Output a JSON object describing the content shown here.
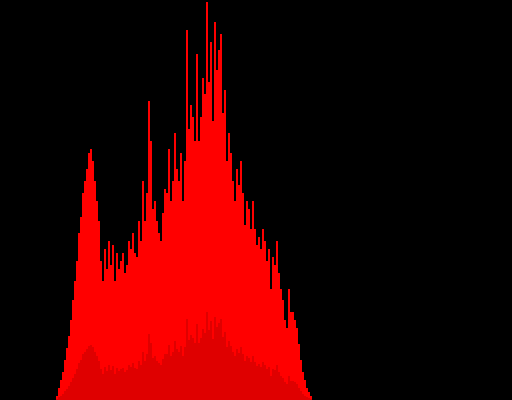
{
  "chart_data": {
    "type": "bar",
    "title": "",
    "xlabel": "",
    "ylabel": "",
    "grid": false,
    "legend": "none",
    "x_count": 256,
    "ylim": [
      0,
      1
    ],
    "colors": {
      "background": "#000000",
      "bar": "#ff0000",
      "bar_dark": "#8b0000"
    },
    "values": [
      0,
      0,
      0,
      0,
      0,
      0,
      0,
      0,
      0,
      0,
      0,
      0,
      0,
      0,
      0,
      0,
      0,
      0,
      0,
      0,
      0,
      0,
      0,
      0,
      0,
      0,
      0,
      0,
      0.01,
      0.03,
      0.05,
      0.07,
      0.1,
      0.13,
      0.16,
      0.2,
      0.25,
      0.3,
      0.35,
      0.42,
      0.46,
      0.52,
      0.55,
      0.58,
      0.62,
      0.63,
      0.6,
      0.55,
      0.5,
      0.45,
      0.35,
      0.3,
      0.38,
      0.33,
      0.4,
      0.34,
      0.39,
      0.3,
      0.37,
      0.33,
      0.35,
      0.37,
      0.32,
      0.34,
      0.4,
      0.38,
      0.42,
      0.37,
      0.36,
      0.45,
      0.4,
      0.55,
      0.45,
      0.52,
      0.75,
      0.65,
      0.48,
      0.5,
      0.45,
      0.42,
      0.4,
      0.47,
      0.53,
      0.52,
      0.63,
      0.5,
      0.55,
      0.67,
      0.58,
      0.55,
      0.62,
      0.5,
      0.6,
      0.93,
      0.68,
      0.74,
      0.71,
      0.65,
      0.87,
      0.65,
      0.71,
      0.81,
      0.77,
      1.0,
      0.8,
      0.9,
      0.7,
      0.95,
      0.83,
      0.88,
      0.92,
      0.72,
      0.78,
      0.6,
      0.67,
      0.62,
      0.55,
      0.5,
      0.58,
      0.54,
      0.6,
      0.52,
      0.44,
      0.5,
      0.48,
      0.43,
      0.5,
      0.43,
      0.39,
      0.41,
      0.38,
      0.43,
      0.4,
      0.35,
      0.38,
      0.28,
      0.36,
      0.34,
      0.4,
      0.32,
      0.28,
      0.25,
      0.2,
      0.18,
      0.28,
      0.22,
      0.22,
      0.2,
      0.18,
      0.14,
      0.1,
      0.07,
      0.05,
      0.03,
      0.02,
      0.01,
      0,
      0,
      0,
      0,
      0,
      0,
      0,
      0,
      0,
      0,
      0,
      0,
      0,
      0,
      0,
      0,
      0,
      0,
      0,
      0,
      0,
      0,
      0,
      0,
      0,
      0,
      0,
      0,
      0,
      0,
      0,
      0,
      0,
      0,
      0,
      0,
      0,
      0,
      0,
      0,
      0,
      0,
      0,
      0,
      0,
      0,
      0,
      0,
      0,
      0,
      0,
      0,
      0,
      0,
      0,
      0,
      0,
      0,
      0,
      0,
      0,
      0,
      0,
      0,
      0,
      0,
      0,
      0,
      0,
      0,
      0,
      0,
      0,
      0,
      0,
      0,
      0,
      0,
      0,
      0,
      0,
      0,
      0,
      0,
      0,
      0,
      0,
      0,
      0,
      0,
      0,
      0,
      0,
      0,
      0,
      0,
      0,
      0,
      0,
      0,
      0,
      0,
      0,
      0,
      0,
      0,
      0,
      0,
      0,
      0,
      0,
      0,
      0,
      0,
      0,
      0,
      0,
      0,
      0,
      0,
      0,
      0,
      0,
      0,
      0,
      0,
      0,
      0,
      0,
      0,
      0,
      0,
      0,
      0
    ]
  }
}
